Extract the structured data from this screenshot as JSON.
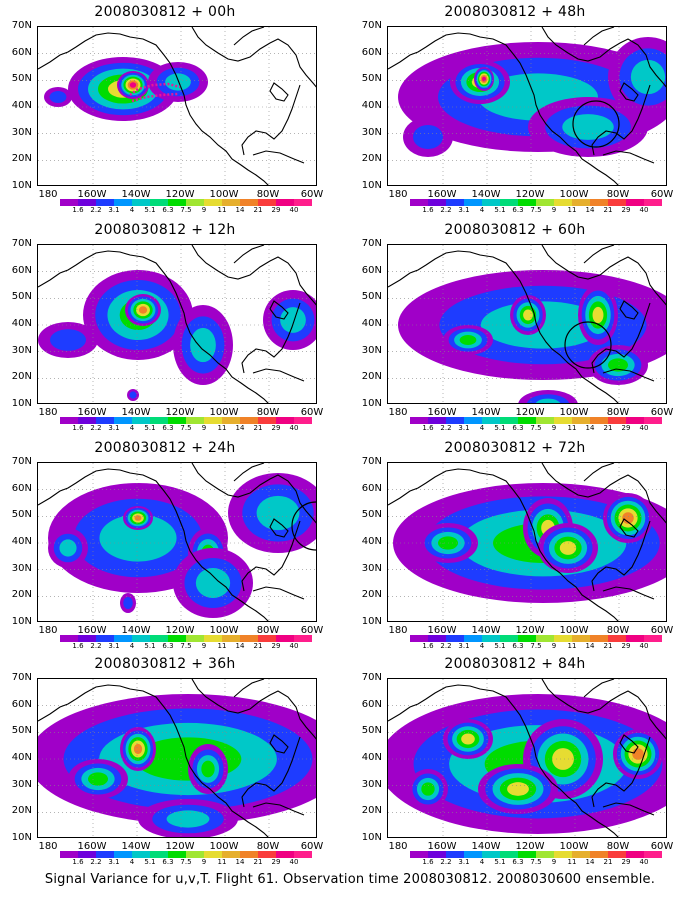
{
  "caption": "Signal Variance for u,v,T. Flight 61. Observation time 2008030812. 2008030600 ensemble.",
  "lat_labels": [
    "70N",
    "60N",
    "50N",
    "40N",
    "30N",
    "20N",
    "10N"
  ],
  "lon_labels": [
    "180",
    "160W",
    "140W",
    "120W",
    "100W",
    "80W",
    "60W"
  ],
  "colorbar": {
    "labels": [
      "1.6",
      "2.2",
      "3.1",
      "4",
      "5.1",
      "6.3",
      "7.5",
      "9",
      "11",
      "14",
      "21",
      "29",
      "40"
    ],
    "colors": [
      "#a000c8",
      "#6e00dc",
      "#1e3cff",
      "#0096ff",
      "#00c8c8",
      "#00dc78",
      "#00dc00",
      "#a0e632",
      "#e6dc32",
      "#e6af2d",
      "#f08228",
      "#fa3c3c",
      "#f00082",
      "#ff1e8c"
    ]
  },
  "panels": [
    {
      "title": "2008030812 + 00h"
    },
    {
      "title": "2008030812 + 48h"
    },
    {
      "title": "2008030812 + 12h"
    },
    {
      "title": "2008030812 + 60h"
    },
    {
      "title": "2008030812 + 24h"
    },
    {
      "title": "2008030812 + 72h"
    },
    {
      "title": "2008030812 + 36h"
    },
    {
      "title": "2008030812 + 84h"
    }
  ]
}
